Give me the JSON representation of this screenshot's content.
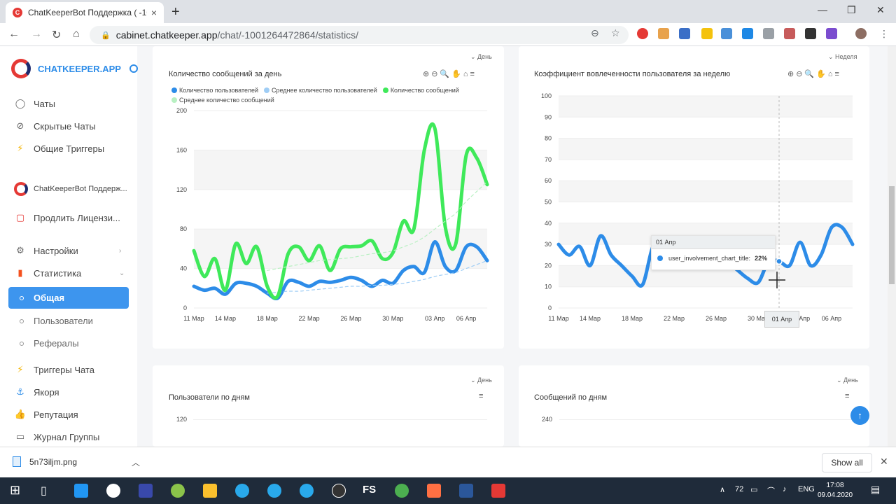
{
  "browser": {
    "tab_title": "ChatKeeperBot Поддержка ( -10",
    "url_host": "cabinet.chatkeeper.app",
    "url_path": "/chat/-1001264472864/statistics/"
  },
  "sidebar": {
    "brand": "CHATKEEPER.APP",
    "items": [
      {
        "label": "Чаты"
      },
      {
        "label": "Скрытые Чаты"
      },
      {
        "label": "Общие Триггеры"
      }
    ],
    "bot_name": "ChatKeeperBot Поддерж...",
    "license": "Продлить Лицензи...",
    "settings": "Настройки",
    "statistics": "Статистика",
    "sub_active": "Общая",
    "sub_users": "Пользователи",
    "sub_referrals": "Рефералы",
    "bottom_items": [
      {
        "label": "Триггеры Чата"
      },
      {
        "label": "Якоря"
      },
      {
        "label": "Репутация"
      },
      {
        "label": "Журнал Группы"
      }
    ]
  },
  "card1": {
    "title": "Количество сообщений за день",
    "period": "День",
    "legend": [
      {
        "label": "Количество пользователей",
        "color": "#2d8ce8"
      },
      {
        "label": "Среднее количество пользователей",
        "color": "#9fcdf5"
      },
      {
        "label": "Количество сообщений",
        "color": "#3fe95a"
      },
      {
        "label": "Среднее количество сообщений",
        "color": "#b8f0c2"
      }
    ]
  },
  "card2": {
    "title": "Коэффициент вовлеченности пользователя за неделю",
    "period": "Неделя",
    "tooltip_date": "01 Апр",
    "tooltip_series": "user_involvement_chart_title:",
    "tooltip_value": "22%",
    "crosshair_label": "01 Апр"
  },
  "card3": {
    "title": "Пользователи по дням",
    "period": "День",
    "first_tick": "120"
  },
  "card4": {
    "title": "Сообщений по дням",
    "period": "День",
    "first_tick": "240"
  },
  "chart_data": [
    {
      "type": "line",
      "title": "Количество сообщений за день",
      "x": [
        "11 Мар",
        "12 Мар",
        "13 Мар",
        "14 Мар",
        "15 Мар",
        "16 Мар",
        "17 Мар",
        "18 Мар",
        "19 Мар",
        "20 Мар",
        "21 Мар",
        "22 Мар",
        "23 Мар",
        "24 Мар",
        "25 Мар",
        "26 Мар",
        "27 Мар",
        "28 Мар",
        "29 Мар",
        "30 Мар",
        "31 Мар",
        "01 Апр",
        "02 Апр",
        "03 Апр",
        "04 Апр",
        "05 Апр",
        "06 Апр",
        "07 Апр",
        "08 Апр"
      ],
      "x_tick_labels": [
        "11 Мар",
        "14 Мар",
        "18 Мар",
        "22 Мар",
        "26 Мар",
        "30 Мар",
        "03 Апр",
        "06 Апр"
      ],
      "ylim": [
        0,
        200
      ],
      "yticks": [
        0,
        40,
        80,
        120,
        160,
        200
      ],
      "series": [
        {
          "name": "Количество пользователей",
          "color": "#2d8ce8",
          "values": [
            22,
            18,
            20,
            14,
            25,
            25,
            22,
            15,
            10,
            27,
            26,
            22,
            27,
            26,
            28,
            31,
            28,
            22,
            28,
            25,
            38,
            42,
            36,
            67,
            42,
            38,
            62,
            62,
            48
          ]
        },
        {
          "name": "Среднее количество пользователей",
          "color": "#9fcdf5",
          "dashed": true,
          "values": [
            null,
            null,
            null,
            null,
            null,
            null,
            null,
            15,
            16,
            17,
            17,
            18,
            19,
            20,
            21,
            22,
            22,
            23,
            23,
            24,
            25,
            27,
            29,
            32,
            34,
            36,
            40,
            44,
            48
          ]
        },
        {
          "name": "Количество сообщений",
          "color": "#3fe95a",
          "values": [
            58,
            32,
            50,
            18,
            65,
            45,
            62,
            22,
            12,
            55,
            62,
            48,
            63,
            38,
            60,
            62,
            63,
            68,
            50,
            56,
            88,
            80,
            160,
            182,
            82,
            65,
            155,
            152,
            125
          ]
        },
        {
          "name": "Среднее количество сообщений",
          "color": "#b8f0c2",
          "dashed": true,
          "values": [
            null,
            null,
            null,
            null,
            null,
            null,
            null,
            38,
            40,
            42,
            44,
            46,
            48,
            49,
            50,
            51,
            53,
            55,
            56,
            58,
            62,
            66,
            72,
            80,
            88,
            96,
            108,
            118,
            128
          ]
        }
      ]
    },
    {
      "type": "line",
      "title": "Коэффициент вовлеченности пользователя за неделю",
      "x": [
        "11 Мар",
        "12 Мар",
        "13 Мар",
        "14 Мар",
        "15 Мар",
        "16 Мар",
        "17 Мар",
        "18 Мар",
        "19 Мар",
        "20 Мар",
        "21 Мар",
        "22 Мар",
        "23 Мар",
        "24 Мар",
        "25 Мар",
        "26 Мар",
        "27 Мар",
        "28 Мар",
        "29 Мар",
        "30 Мар",
        "31 Мар",
        "01 Апр",
        "02 Апр",
        "03 Апр",
        "04 Апр",
        "05 Апр",
        "06 Апр",
        "07 Апр",
        "08 Апр"
      ],
      "x_tick_labels": [
        "11 Мар",
        "14 Мар",
        "18 Мар",
        "22 Мар",
        "26 Мар",
        "30 Мар",
        "01 Апр",
        "03 Апр",
        "06 Апр"
      ],
      "ylim": [
        0,
        100
      ],
      "yticks": [
        0,
        10,
        20,
        30,
        40,
        50,
        60,
        70,
        80,
        90,
        100
      ],
      "series": [
        {
          "name": "user_involvement_chart_title",
          "color": "#2d8ce8",
          "values": [
            30,
            25,
            29,
            20,
            34,
            25,
            20,
            15,
            11,
            29,
            28,
            25,
            30,
            28,
            28,
            26,
            22,
            18,
            14,
            12,
            22,
            22,
            20,
            31,
            20,
            25,
            38,
            38,
            30
          ]
        }
      ]
    }
  ],
  "download": {
    "filename": "5n73iljm.png",
    "show_all": "Show all"
  },
  "taskbar": {
    "temp": "72",
    "lang": "ENG",
    "time": "17:08",
    "date": "09.04.2020"
  }
}
